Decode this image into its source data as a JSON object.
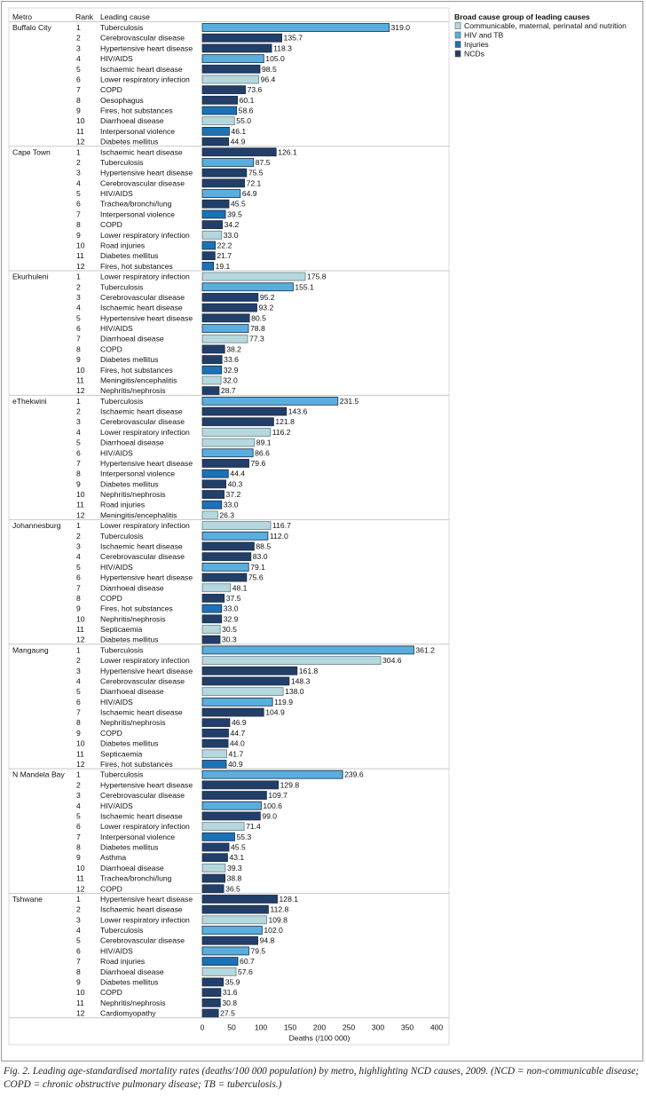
{
  "chart_data": {
    "type": "bar",
    "orientation": "horizontal",
    "headers": {
      "metro": "Metro",
      "rank": "Rank",
      "cause": "Leading cause"
    },
    "xlabel": "Deaths (/100 000)",
    "xlim": [
      0,
      400
    ],
    "xticks": [
      0,
      50,
      100,
      150,
      200,
      250,
      300,
      350,
      400
    ],
    "legend": {
      "title": "Broad cause group of leading causes",
      "position": "top-right",
      "items": [
        {
          "key": "C",
          "label": "Communicable, maternal, perinatal and nutrition",
          "color": "#b5d8de"
        },
        {
          "key": "H",
          "label": "HIV and TB",
          "color": "#5aaedd"
        },
        {
          "key": "I",
          "label": "Injuries",
          "color": "#1b72b6"
        },
        {
          "key": "N",
          "label": "NCDs",
          "color": "#223f69"
        }
      ]
    },
    "metros": [
      {
        "name": "Buffalo City",
        "rows": [
          [
            "Tuberculosis",
            319.0,
            "H"
          ],
          [
            "Cerebrovascular disease",
            135.7,
            "N"
          ],
          [
            "Hypertensive heart disease",
            118.3,
            "N"
          ],
          [
            "HIV/AIDS",
            105.0,
            "H"
          ],
          [
            "Ischaemic heart disease",
            98.5,
            "N"
          ],
          [
            "Lower respiratory infection",
            96.4,
            "C"
          ],
          [
            "COPD",
            73.6,
            "N"
          ],
          [
            "Oesophagus",
            60.1,
            "N"
          ],
          [
            "Fires, hot substances",
            58.6,
            "I"
          ],
          [
            "Diarrhoeal disease",
            55.0,
            "C"
          ],
          [
            "Interpersonal violence",
            46.1,
            "I"
          ],
          [
            "Diabetes mellitus",
            44.9,
            "N"
          ]
        ]
      },
      {
        "name": "Cape Town",
        "rows": [
          [
            "Ischaemic heart disease",
            126.1,
            "N"
          ],
          [
            "Tuberculosis",
            87.5,
            "H"
          ],
          [
            "Hypertensive heart disease",
            75.5,
            "N"
          ],
          [
            "Cerebrovascular disease",
            72.1,
            "N"
          ],
          [
            "HIV/AIDS",
            64.9,
            "H"
          ],
          [
            "Trachea/bronchi/lung",
            45.5,
            "N"
          ],
          [
            "Interpersonal violence",
            39.5,
            "I"
          ],
          [
            "COPD",
            34.2,
            "N"
          ],
          [
            "Lower respiratory infection",
            33.0,
            "C"
          ],
          [
            "Road injuries",
            22.2,
            "I"
          ],
          [
            "Diabetes mellitus",
            21.7,
            "N"
          ],
          [
            "Fires, hot substances",
            19.1,
            "I"
          ]
        ]
      },
      {
        "name": "Ekurhuleni",
        "rows": [
          [
            "Lower respiratory infection",
            175.8,
            "C"
          ],
          [
            "Tuberculosis",
            155.1,
            "H"
          ],
          [
            "Cerebrovascular disease",
            95.2,
            "N"
          ],
          [
            "Ischaemic heart disease",
            93.2,
            "N"
          ],
          [
            "Hypertensive heart disease",
            80.5,
            "N"
          ],
          [
            "HIV/AIDS",
            78.8,
            "H"
          ],
          [
            "Diarrhoeal disease",
            77.3,
            "C"
          ],
          [
            "COPD",
            38.2,
            "N"
          ],
          [
            "Diabetes mellitus",
            33.6,
            "N"
          ],
          [
            "Fires, hot substances",
            32.9,
            "I"
          ],
          [
            "Meningitis/encephalitis",
            32.0,
            "C"
          ],
          [
            "Nephritis/nephrosis",
            28.7,
            "N"
          ]
        ]
      },
      {
        "name": "eThekwini",
        "rows": [
          [
            "Tuberculosis",
            231.5,
            "H"
          ],
          [
            "Ischaemic heart disease",
            143.6,
            "N"
          ],
          [
            "Cerebrovascular disease",
            121.8,
            "N"
          ],
          [
            "Lower respiratory infection",
            116.2,
            "C"
          ],
          [
            "Diarrhoeal disease",
            89.1,
            "C"
          ],
          [
            "HIV/AIDS",
            86.6,
            "H"
          ],
          [
            "Hypertensive heart disease",
            79.6,
            "N"
          ],
          [
            "Interpersonal violence",
            44.4,
            "I"
          ],
          [
            "Diabetes mellitus",
            40.3,
            "N"
          ],
          [
            "Nephritis/nephrosis",
            37.2,
            "N"
          ],
          [
            "Road injuries",
            33.0,
            "I"
          ],
          [
            "Meningitis/encephalitis",
            26.3,
            "C"
          ]
        ]
      },
      {
        "name": "Johannesburg",
        "rows": [
          [
            "Lower respiratory infection",
            116.7,
            "C"
          ],
          [
            "Tuberculosis",
            112.0,
            "H"
          ],
          [
            "Ischaemic heart disease",
            88.5,
            "N"
          ],
          [
            "Cerebrovascular disease",
            83.0,
            "N"
          ],
          [
            "HIV/AIDS",
            79.1,
            "H"
          ],
          [
            "Hypertensive heart disease",
            75.6,
            "N"
          ],
          [
            "Diarrhoeal disease",
            48.1,
            "C"
          ],
          [
            "COPD",
            37.5,
            "N"
          ],
          [
            "Fires, hot substances",
            33.0,
            "I"
          ],
          [
            "Nephritis/nephrosis",
            32.9,
            "N"
          ],
          [
            "Septicaemia",
            30.5,
            "C"
          ],
          [
            "Diabetes mellitus",
            30.3,
            "N"
          ]
        ]
      },
      {
        "name": "Mangaung",
        "rows": [
          [
            "Tuberculosis",
            361.2,
            "H"
          ],
          [
            "Lower respiratory infection",
            304.6,
            "C"
          ],
          [
            "Hypertensive heart disease",
            161.8,
            "N"
          ],
          [
            "Cerebrovascular disease",
            148.3,
            "N"
          ],
          [
            "Diarrhoeal disease",
            138.0,
            "C"
          ],
          [
            "HIV/AIDS",
            119.9,
            "H"
          ],
          [
            "Ischaemic heart disease",
            104.9,
            "N"
          ],
          [
            "Nephritis/nephrosis",
            46.9,
            "N"
          ],
          [
            "COPD",
            44.7,
            "N"
          ],
          [
            "Diabetes mellitus",
            44.0,
            "N"
          ],
          [
            "Septicaemia",
            41.7,
            "C"
          ],
          [
            "Fires, hot substances",
            40.9,
            "I"
          ]
        ]
      },
      {
        "name": "N Mandela Bay",
        "rows": [
          [
            "Tuberculosis",
            239.6,
            "H"
          ],
          [
            "Hypertensive heart disease",
            129.8,
            "N"
          ],
          [
            "Cerebrovascular disease",
            109.7,
            "N"
          ],
          [
            "HIV/AIDS",
            100.6,
            "H"
          ],
          [
            "Ischaemic heart disease",
            99.0,
            "N"
          ],
          [
            "Lower respiratory infection",
            71.4,
            "C"
          ],
          [
            "Interpersonal violence",
            55.3,
            "I"
          ],
          [
            "Diabetes mellitus",
            45.5,
            "N"
          ],
          [
            "Asthma",
            43.1,
            "N"
          ],
          [
            "Diarrhoeal disease",
            39.3,
            "C"
          ],
          [
            "Trachea/bronchi/lung",
            38.8,
            "N"
          ],
          [
            "COPD",
            36.5,
            "N"
          ]
        ]
      },
      {
        "name": "Tshwane",
        "rows": [
          [
            "Hypertensive heart disease",
            128.1,
            "N"
          ],
          [
            "Ischaemic heart disease",
            112.8,
            "N"
          ],
          [
            "Lower respiratory infection",
            109.8,
            "C"
          ],
          [
            "Tuberculosis",
            102.0,
            "H"
          ],
          [
            "Cerebrovascular disease",
            94.8,
            "N"
          ],
          [
            "HIV/AIDS",
            79.5,
            "H"
          ],
          [
            "Road injuries",
            60.7,
            "I"
          ],
          [
            "Diarrhoeal disease",
            57.6,
            "C"
          ],
          [
            "Diabetes mellitus",
            35.9,
            "N"
          ],
          [
            "COPD",
            31.6,
            "N"
          ],
          [
            "Nephritis/nephrosis",
            30.8,
            "N"
          ],
          [
            "Cardiomyopathy",
            27.5,
            "N"
          ]
        ]
      }
    ]
  },
  "caption": "Fig. 2. Leading age-standardised mortality rates (deaths/100 000 population) by metro, highlighting NCD causes, 2009. (NCD = non-communicable disease; COPD = chronic obstructive pulmonary disease; TB = tuberculosis.)"
}
